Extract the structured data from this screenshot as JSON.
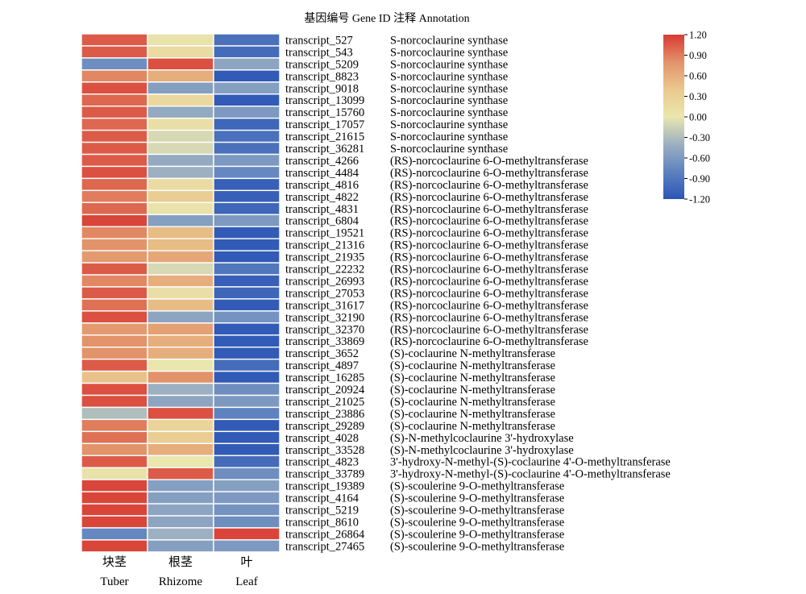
{
  "chart_data": {
    "type": "heatmap",
    "title": "基因编号 Gene ID  注释 Annotation",
    "columns": [
      {
        "zh": "块茎",
        "en": "Tuber"
      },
      {
        "zh": "根茎",
        "en": "Rhizome"
      },
      {
        "zh": "叶",
        "en": "Leaf"
      }
    ],
    "rows": [
      {
        "id": "transcript_527",
        "annotation": "S-norcoclaurine synthase",
        "values": [
          1.05,
          0.05,
          -0.95
        ]
      },
      {
        "id": "transcript_543",
        "annotation": "S-norcoclaurine synthase",
        "values": [
          1.05,
          0.15,
          -1.0
        ]
      },
      {
        "id": "transcript_5209",
        "annotation": "S-norcoclaurine synthase",
        "values": [
          -0.7,
          1.1,
          -0.5
        ]
      },
      {
        "id": "transcript_8823",
        "annotation": "S-norcoclaurine synthase",
        "values": [
          0.85,
          0.6,
          -1.15
        ]
      },
      {
        "id": "transcript_9018",
        "annotation": "S-norcoclaurine synthase",
        "values": [
          1.1,
          -0.55,
          -0.55
        ]
      },
      {
        "id": "transcript_13099",
        "annotation": "S-norcoclaurine synthase",
        "values": [
          1.0,
          0.2,
          -1.15
        ]
      },
      {
        "id": "transcript_15760",
        "annotation": "S-norcoclaurine synthase",
        "values": [
          1.05,
          -0.45,
          -0.6
        ]
      },
      {
        "id": "transcript_17057",
        "annotation": "S-norcoclaurine synthase",
        "values": [
          1.0,
          0.1,
          -1.05
        ]
      },
      {
        "id": "transcript_21615",
        "annotation": "S-norcoclaurine synthase",
        "values": [
          1.05,
          -0.1,
          -0.95
        ]
      },
      {
        "id": "transcript_36281",
        "annotation": "S-norcoclaurine synthase",
        "values": [
          1.05,
          -0.1,
          -0.95
        ]
      },
      {
        "id": "transcript_4266",
        "annotation": "(RS)-norcoclaurine 6-O-methyltransferase",
        "values": [
          1.05,
          -0.45,
          -0.6
        ]
      },
      {
        "id": "transcript_4484",
        "annotation": "(RS)-norcoclaurine 6-O-methyltransferase",
        "values": [
          1.1,
          -0.4,
          -0.75
        ]
      },
      {
        "id": "transcript_4816",
        "annotation": "(RS)-norcoclaurine 6-O-methyltransferase",
        "values": [
          1.0,
          0.15,
          -1.1
        ]
      },
      {
        "id": "transcript_4822",
        "annotation": "(RS)-norcoclaurine 6-O-methyltransferase",
        "values": [
          0.9,
          0.35,
          -1.1
        ]
      },
      {
        "id": "transcript_4831",
        "annotation": "(RS)-norcoclaurine 6-O-methyltransferase",
        "values": [
          1.0,
          0.05,
          -1.05
        ]
      },
      {
        "id": "transcript_6804",
        "annotation": "(RS)-norcoclaurine 6-O-methyltransferase",
        "values": [
          1.15,
          -0.55,
          -0.6
        ]
      },
      {
        "id": "transcript_19521",
        "annotation": "(RS)-norcoclaurine 6-O-methyltransferase",
        "values": [
          0.85,
          0.5,
          -1.15
        ]
      },
      {
        "id": "transcript_21316",
        "annotation": "(RS)-norcoclaurine 6-O-methyltransferase",
        "values": [
          0.8,
          0.5,
          -1.15
        ]
      },
      {
        "id": "transcript_21935",
        "annotation": "(RS)-norcoclaurine 6-O-methyltransferase",
        "values": [
          0.75,
          0.65,
          -1.15
        ]
      },
      {
        "id": "transcript_22232",
        "annotation": "(RS)-norcoclaurine 6-O-methyltransferase",
        "values": [
          1.05,
          -0.1,
          -0.9
        ]
      },
      {
        "id": "transcript_26993",
        "annotation": "(RS)-norcoclaurine 6-O-methyltransferase",
        "values": [
          0.85,
          0.6,
          -1.1
        ]
      },
      {
        "id": "transcript_27053",
        "annotation": "(RS)-norcoclaurine 6-O-methyltransferase",
        "values": [
          1.05,
          0.1,
          -1.05
        ]
      },
      {
        "id": "transcript_31617",
        "annotation": "(RS)-norcoclaurine 6-O-methyltransferase",
        "values": [
          0.95,
          0.5,
          -1.15
        ]
      },
      {
        "id": "transcript_32190",
        "annotation": "(RS)-norcoclaurine 6-O-methyltransferase",
        "values": [
          1.1,
          -0.5,
          -0.65
        ]
      },
      {
        "id": "transcript_32370",
        "annotation": "(RS)-norcoclaurine 6-O-methyltransferase",
        "values": [
          0.75,
          0.7,
          -1.15
        ]
      },
      {
        "id": "transcript_33869",
        "annotation": "(RS)-norcoclaurine 6-O-methyltransferase",
        "values": [
          0.8,
          0.6,
          -1.15
        ]
      },
      {
        "id": "transcript_3652",
        "annotation": "(S)-coclaurine N-methyltransferase",
        "values": [
          0.8,
          0.6,
          -1.15
        ]
      },
      {
        "id": "transcript_4897",
        "annotation": "(S)-coclaurine N-methyltransferase",
        "values": [
          1.05,
          0.0,
          -1.0
        ]
      },
      {
        "id": "transcript_16285",
        "annotation": "(S)-coclaurine N-methyltransferase",
        "values": [
          0.45,
          0.8,
          -1.15
        ]
      },
      {
        "id": "transcript_20924",
        "annotation": "(S)-coclaurine N-methyltransferase",
        "values": [
          1.1,
          -0.4,
          -0.7
        ]
      },
      {
        "id": "transcript_21025",
        "annotation": "(S)-coclaurine N-methyltransferase",
        "values": [
          1.1,
          -0.5,
          -0.6
        ]
      },
      {
        "id": "transcript_23886",
        "annotation": "(S)-coclaurine N-methyltransferase",
        "values": [
          -0.3,
          1.1,
          -0.8
        ]
      },
      {
        "id": "transcript_29289",
        "annotation": "(S)-coclaurine N-methyltransferase",
        "values": [
          0.9,
          0.25,
          -1.15
        ]
      },
      {
        "id": "transcript_4028",
        "annotation": "(S)-N-methylcoclaurine 3'-hydroxylase",
        "values": [
          0.95,
          0.35,
          -1.15
        ]
      },
      {
        "id": "transcript_33528",
        "annotation": "(S)-N-methylcoclaurine 3'-hydroxylase",
        "values": [
          0.8,
          0.6,
          -1.15
        ]
      },
      {
        "id": "transcript_4823",
        "annotation": "3'-hydroxy-N-methyl-(S)-coclaurine 4'-O-methyltransferase",
        "values": [
          1.05,
          0.0,
          -1.0
        ]
      },
      {
        "id": "transcript_33789",
        "annotation": "3'-hydroxy-N-methyl-(S)-coclaurine 4'-O-methyltransferase",
        "values": [
          0.05,
          1.05,
          -0.7
        ]
      },
      {
        "id": "transcript_19389",
        "annotation": "(S)-scoulerine 9-O-methyltransferase",
        "values": [
          1.15,
          -0.55,
          -0.55
        ]
      },
      {
        "id": "transcript_4164",
        "annotation": "(S)-scoulerine 9-O-methyltransferase",
        "values": [
          1.15,
          -0.55,
          -0.6
        ]
      },
      {
        "id": "transcript_5219",
        "annotation": "(S)-scoulerine 9-O-methyltransferase",
        "values": [
          1.15,
          -0.5,
          -0.65
        ]
      },
      {
        "id": "transcript_8610",
        "annotation": "(S)-scoulerine 9-O-methyltransferase",
        "values": [
          1.15,
          -0.5,
          -0.7
        ]
      },
      {
        "id": "transcript_26864",
        "annotation": "(S)-scoulerine 9-O-methyltransferase",
        "values": [
          -0.75,
          -0.4,
          1.15
        ]
      },
      {
        "id": "transcript_27465",
        "annotation": "(S)-scoulerine 9-O-methyltransferase",
        "values": [
          1.15,
          -0.55,
          -0.6
        ]
      }
    ],
    "colorbar": {
      "min": -1.2,
      "max": 1.2,
      "ticks": [
        "1.20",
        "0.90",
        "0.60",
        "0.30",
        "0.00",
        "-0.30",
        "-0.60",
        "-0.90",
        "-1.20"
      ],
      "colors": [
        "#2b55b5",
        "#5e82c0",
        "#9cb0c1",
        "#e9e6ae",
        "#eac98e",
        "#e2936a",
        "#d93a33"
      ],
      "placement": "top-right"
    }
  }
}
